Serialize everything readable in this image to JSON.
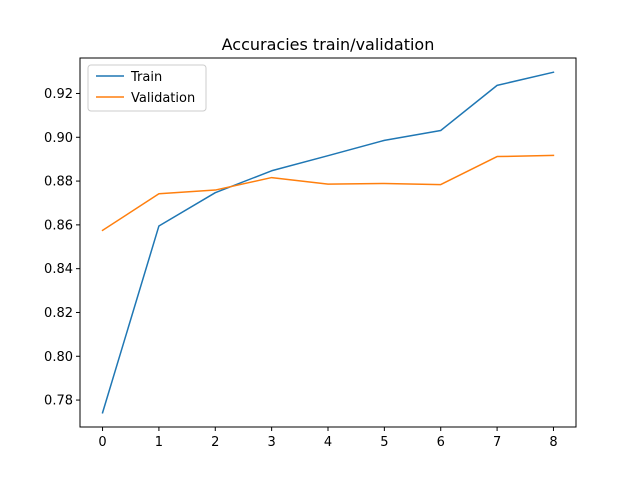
{
  "chart_data": {
    "type": "line",
    "title": "Accuracies train/validation",
    "xlabel": "",
    "ylabel": "",
    "x": [
      0,
      1,
      2,
      3,
      4,
      5,
      6,
      7,
      8
    ],
    "xlim": [
      -0.4,
      8.4
    ],
    "ylim": [
      0.7677,
      0.9362
    ],
    "xticks": [
      0,
      1,
      2,
      3,
      4,
      5,
      6,
      7,
      8
    ],
    "xtick_labels": [
      "0",
      "1",
      "2",
      "3",
      "4",
      "5",
      "6",
      "7",
      "8"
    ],
    "yticks": [
      0.78,
      0.8,
      0.82,
      0.84,
      0.86,
      0.88,
      0.9,
      0.92
    ],
    "ytick_labels": [
      "0.78",
      "0.80",
      "0.82",
      "0.84",
      "0.86",
      "0.88",
      "0.90",
      "0.92"
    ],
    "grid": false,
    "legend_position": "upper-left",
    "series": [
      {
        "name": "Train",
        "color": "#1f77b4",
        "values": [
          0.7742,
          0.8595,
          0.8747,
          0.8847,
          0.8916,
          0.8986,
          0.9031,
          0.9237,
          0.9297
        ]
      },
      {
        "name": "Validation",
        "color": "#ff7f0e",
        "values": [
          0.8575,
          0.8742,
          0.8759,
          0.8816,
          0.8786,
          0.8789,
          0.8784,
          0.8912,
          0.8917
        ]
      }
    ]
  }
}
